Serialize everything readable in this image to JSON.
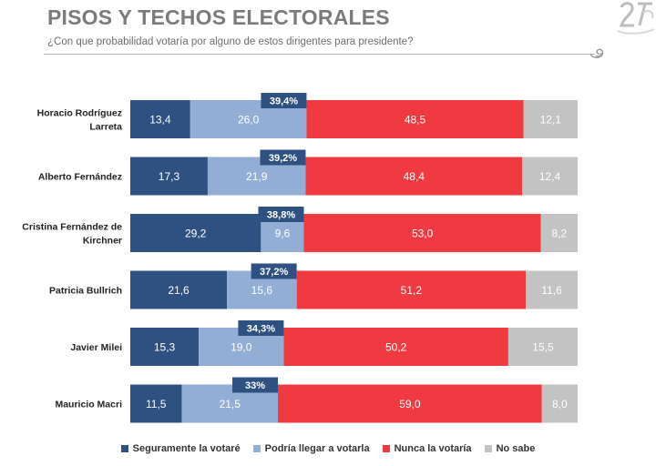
{
  "title": "PISOS Y TECHOS ELECTORALES",
  "subtitle": "¿Con que probabilidad votaría por alguno de estos dirigentes para presidente?",
  "chart_data": {
    "type": "bar",
    "orientation": "horizontal",
    "stacked": true,
    "title": "PISOS Y TECHOS ELECTORALES",
    "subtitle": "¿Con que probabilidad votaría por alguno de estos dirigentes para presidente?",
    "categories": [
      [
        "Horacio Rodríguez",
        "Larreta"
      ],
      [
        "Alberto Fernández"
      ],
      [
        "Cristina Fernández de",
        "Kirchner"
      ],
      [
        "Patricia Bullrich"
      ],
      [
        "Javier Milei"
      ],
      [
        "Mauricio Macri"
      ]
    ],
    "series": [
      {
        "name": "Seguramente la votaré",
        "color": "#2f5182",
        "values": [
          13.4,
          17.3,
          29.2,
          21.6,
          15.3,
          11.5
        ],
        "labels": [
          "13,4",
          "17,3",
          "29,2",
          "21,6",
          "15,3",
          "11,5"
        ]
      },
      {
        "name": "Podría llegar a votarla",
        "color": "#92aed4",
        "values": [
          26.0,
          21.9,
          9.6,
          15.6,
          19.0,
          21.5
        ],
        "labels": [
          "26,0",
          "21,9",
          "9,6",
          "15,6",
          "19,0",
          "21,5"
        ]
      },
      {
        "name": "Nunca la votaría",
        "color": "#ef3a42",
        "values": [
          48.5,
          48.4,
          53.0,
          51.2,
          50.2,
          59.0
        ],
        "labels": [
          "48,5",
          "48,4",
          "53,0",
          "51,2",
          "50,2",
          "59,0"
        ]
      },
      {
        "name": "No sabe",
        "color": "#c3c3c3",
        "values": [
          12.1,
          12.4,
          8.2,
          11.6,
          15.5,
          8.0
        ],
        "labels": [
          "12,1",
          "12,4",
          "8,2",
          "11,6",
          "15,5",
          "8,0"
        ]
      }
    ],
    "ceiling": {
      "name": "techo",
      "values": [
        39.4,
        39.2,
        38.8,
        37.2,
        34.3,
        33.0
      ],
      "labels": [
        "39,4%",
        "39,2%",
        "38,8%",
        "37,2%",
        "34,3%",
        "33%"
      ],
      "color": "#2f5182"
    },
    "xlim": [
      0,
      100
    ],
    "grid": false,
    "legend": "bottom"
  }
}
